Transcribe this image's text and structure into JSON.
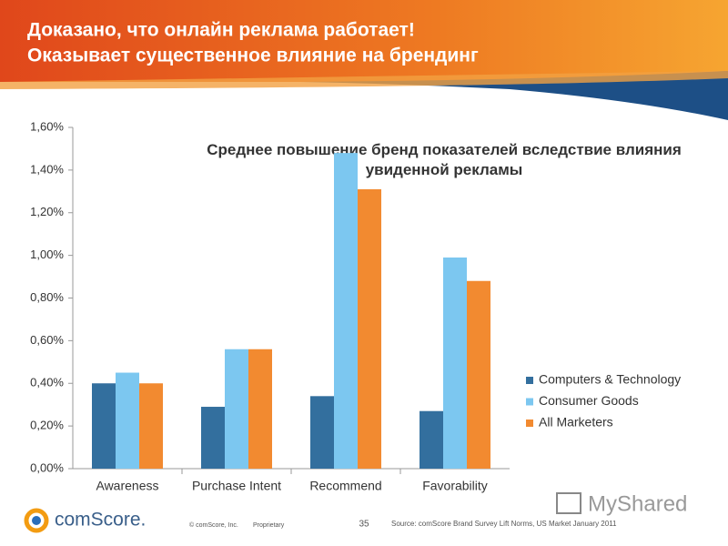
{
  "slide": {
    "title_lines": [
      "Доказано, что онлайн реклама работает!",
      "Оказывает существенное влияние на брендинг"
    ],
    "footer": {
      "logo": "comScore.",
      "copyright": "© comScore, Inc.",
      "proprietary": "Proprietary",
      "page": "35",
      "source": "Source: comScore Brand Survey Lift Norms, US Market January 2011",
      "watermark": "MyShared"
    }
  },
  "chart_data": {
    "type": "bar",
    "title": "Среднее повышение бренд показателей вследствие влияния увиденной рекламы",
    "categories": [
      "Awareness",
      "Purchase Intent",
      "Recommend",
      "Favorability"
    ],
    "series": [
      {
        "name": "Computers & Technology",
        "color": "#336f9e",
        "values": [
          0.4,
          0.29,
          0.34,
          0.27
        ]
      },
      {
        "name": "Consumer Goods",
        "color": "#7cc7f0",
        "values": [
          0.45,
          0.56,
          1.48,
          0.99
        ]
      },
      {
        "name": "All Marketers",
        "color": "#f28a30",
        "values": [
          0.4,
          0.56,
          1.31,
          0.88
        ]
      }
    ],
    "ylim": [
      0,
      1.6
    ],
    "yticks": [
      {
        "value": 0,
        "label": "0,00%"
      },
      {
        "value": 0.2,
        "label": "0,20%"
      },
      {
        "value": 0.4,
        "label": "0,40%"
      },
      {
        "value": 0.6,
        "label": "0,60%"
      },
      {
        "value": 0.8,
        "label": "0,80%"
      },
      {
        "value": 1.0,
        "label": "1,00%"
      },
      {
        "value": 1.2,
        "label": "1,20%"
      },
      {
        "value": 1.4,
        "label": "1,40%"
      },
      {
        "value": 1.6,
        "label": "1,60%"
      }
    ],
    "grid": false,
    "legend": "right"
  }
}
